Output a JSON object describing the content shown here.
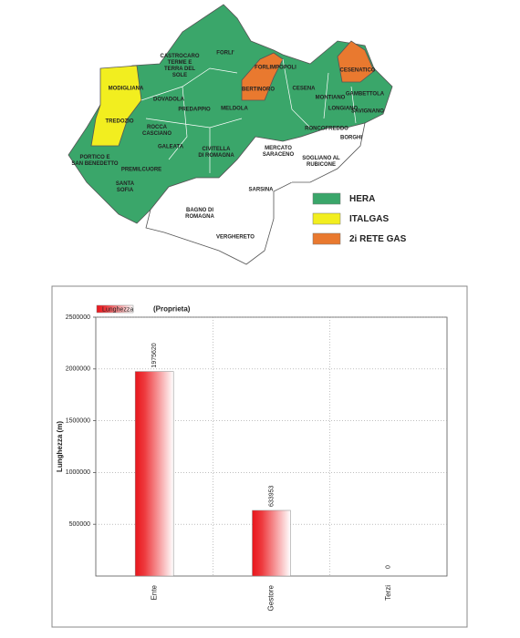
{
  "map": {
    "labels": [
      {
        "lines": [
          "FORLI'"
        ],
        "at": [
          247,
          58
        ]
      },
      {
        "lines": [
          "MODIGLIANA"
        ],
        "at": [
          138,
          97
        ]
      },
      {
        "lines": [
          "CASTROCARO",
          "TERME E",
          "TERRA DEL",
          "SOLE"
        ],
        "at": [
          197,
          72
        ]
      },
      {
        "lines": [
          "DOVADOLA"
        ],
        "at": [
          185,
          109
        ]
      },
      {
        "lines": [
          "PREDAPPIO"
        ],
        "at": [
          213,
          120
        ]
      },
      {
        "lines": [
          "MELDOLA"
        ],
        "at": [
          257,
          119
        ]
      },
      {
        "lines": [
          "TREDOZIO"
        ],
        "at": [
          131,
          133
        ]
      },
      {
        "lines": [
          "ROCCA",
          "CASCIANO"
        ],
        "at": [
          172,
          143
        ]
      },
      {
        "lines": [
          "GALEATA"
        ],
        "at": [
          187,
          161
        ]
      },
      {
        "lines": [
          "CIVITELLA",
          "DI ROMAGNA"
        ],
        "at": [
          237,
          167
        ]
      },
      {
        "lines": [
          "PORTICO E",
          "SAN BENEDETTO"
        ],
        "at": [
          104,
          176
        ]
      },
      {
        "lines": [
          "PREMILCUORE"
        ],
        "at": [
          155,
          186
        ]
      },
      {
        "lines": [
          "SANTA",
          "SOFIA"
        ],
        "at": [
          137,
          205
        ]
      },
      {
        "lines": [
          "FORLIMPOPOLI"
        ],
        "at": [
          302,
          74
        ]
      },
      {
        "lines": [
          "BERTINORO"
        ],
        "at": [
          283,
          98
        ]
      },
      {
        "lines": [
          "CESENA"
        ],
        "at": [
          333,
          97
        ]
      },
      {
        "lines": [
          "CESENATICO"
        ],
        "at": [
          392,
          77
        ]
      },
      {
        "lines": [
          "MONTIANO"
        ],
        "at": [
          362,
          107
        ]
      },
      {
        "lines": [
          "LONGIANO"
        ],
        "at": [
          376,
          119
        ]
      },
      {
        "lines": [
          "GAMBETTOLA"
        ],
        "at": [
          400,
          103
        ]
      },
      {
        "lines": [
          "SAVIGNANO"
        ],
        "at": [
          403,
          122
        ]
      },
      {
        "lines": [
          "RONCOFREDDO"
        ],
        "at": [
          358,
          141
        ]
      },
      {
        "lines": [
          "BORGHI"
        ],
        "at": [
          385,
          151
        ]
      },
      {
        "lines": [
          "MERCATO",
          "SARACENO"
        ],
        "at": [
          305,
          166
        ]
      },
      {
        "lines": [
          "SOGLIANO AL",
          "RUBICONE"
        ],
        "at": [
          352,
          177
        ]
      },
      {
        "lines": [
          "SARSINA"
        ],
        "at": [
          286,
          208
        ]
      },
      {
        "lines": [
          "BAGNO DI",
          "ROMAGNA"
        ],
        "at": [
          219,
          234
        ]
      },
      {
        "lines": [
          "VERGHERETO"
        ],
        "at": [
          258,
          260
        ]
      }
    ],
    "legend": [
      {
        "name": "HERA",
        "color": "#3aa66a"
      },
      {
        "name": "ITALGAS",
        "color": "#f2ee1f"
      },
      {
        "name": "2i RETE GAS",
        "color": "#e9792f"
      }
    ]
  },
  "chart_data": {
    "type": "bar",
    "subtitle": "(Proprieta)",
    "y_label": "Lunghezza (m)",
    "categories": [
      "Ente",
      "Gestore",
      "Terzi"
    ],
    "series": [
      {
        "name": "Lunghezza",
        "color": "#e8151b",
        "values": [
          1975620,
          633953,
          0
        ],
        "value_labels": [
          "1975620",
          "633953",
          "0"
        ]
      }
    ],
    "ylim": [
      0,
      2500000
    ],
    "yticks": [
      500000,
      1000000,
      1500000,
      2000000,
      2500000
    ],
    "grid": true
  }
}
